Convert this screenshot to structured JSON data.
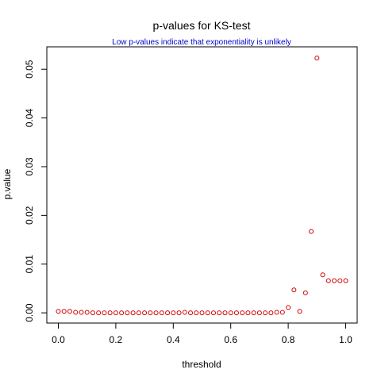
{
  "chart_data": {
    "type": "scatter",
    "title": "p-values for KS-test",
    "subtitle": "Low p-values indicate that exponentiality is unlikely",
    "xlabel": "threshold",
    "ylabel": "p.value",
    "xlim": [
      -0.04,
      1.04
    ],
    "ylim": [
      -0.0021,
      0.0546
    ],
    "xticks": [
      "0.0",
      "0.2",
      "0.4",
      "0.6",
      "0.8",
      "1.0"
    ],
    "yticks": [
      "0.00",
      "0.01",
      "0.02",
      "0.03",
      "0.04",
      "0.05"
    ],
    "grid": false,
    "series": [
      {
        "point_color": "#d00000",
        "x": [
          0.0,
          0.02,
          0.04,
          0.06,
          0.08,
          0.1,
          0.12,
          0.14,
          0.16,
          0.18,
          0.2,
          0.22,
          0.24,
          0.26,
          0.28,
          0.3,
          0.32,
          0.34,
          0.36,
          0.38,
          0.4,
          0.42,
          0.44,
          0.46,
          0.48,
          0.5,
          0.52,
          0.54,
          0.56,
          0.58,
          0.6,
          0.62,
          0.64,
          0.66,
          0.68,
          0.7,
          0.72,
          0.74,
          0.76,
          0.78,
          0.8,
          0.82,
          0.84,
          0.86,
          0.88,
          0.9,
          0.92,
          0.94,
          0.96,
          0.98,
          1.0
        ],
        "y": [
          0.0003,
          0.0003,
          0.0003,
          0.0001,
          0.0001,
          0.0001,
          0.0,
          0.0,
          0.0,
          0.0,
          0.0,
          0.0,
          0.0,
          0.0,
          0.0,
          0.0,
          0.0,
          0.0,
          0.0,
          0.0,
          0.0,
          0.0,
          0.0001,
          0.0,
          0.0,
          0.0,
          0.0,
          0.0,
          0.0,
          0.0,
          0.0,
          0.0,
          0.0,
          0.0,
          0.0,
          0.0,
          0.0,
          0.0,
          0.0001,
          0.0001,
          0.0011,
          0.0047,
          0.0003,
          0.0041,
          0.0167,
          0.0523,
          0.0078,
          0.0066,
          0.0066,
          0.0066,
          0.0066
        ]
      }
    ]
  },
  "colors": {
    "subtitle": "#0000cc",
    "points": "#d00000"
  }
}
